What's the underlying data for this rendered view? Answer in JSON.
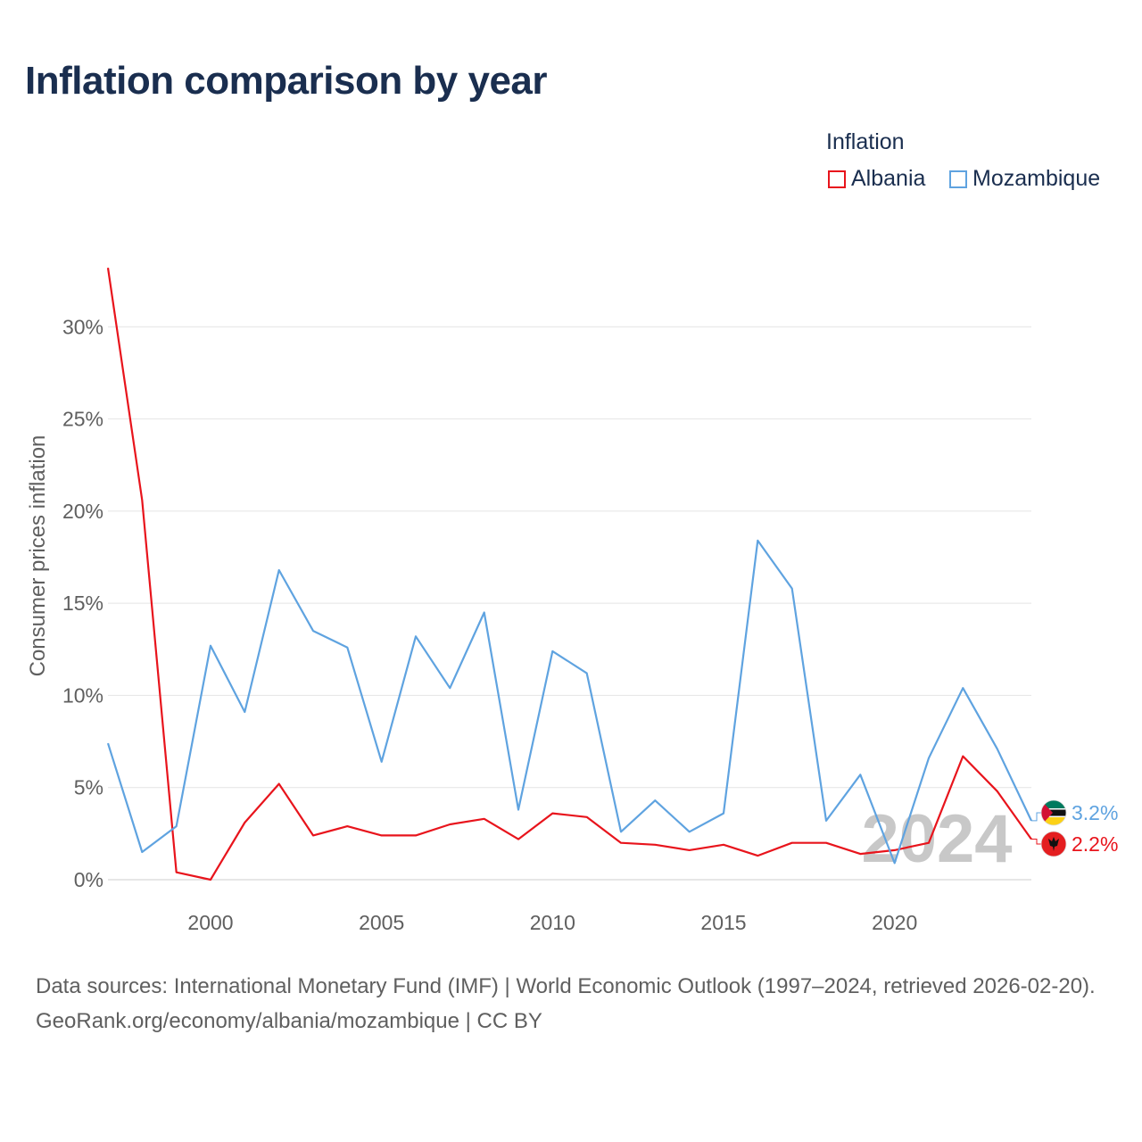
{
  "title": "Inflation comparison by year",
  "legend": {
    "title": "Inflation",
    "items": [
      {
        "label": "Albania",
        "color": "#e8141c"
      },
      {
        "label": "Mozambique",
        "color": "#5fa3e0"
      }
    ]
  },
  "chart_data": {
    "type": "line",
    "title": "Inflation comparison by year",
    "ylabel": "Consumer prices inflation",
    "xlabel": "",
    "xlim": [
      1997,
      2024
    ],
    "ylim": [
      0,
      33.5
    ],
    "x_ticks": [
      2000,
      2005,
      2010,
      2015,
      2020
    ],
    "y_ticks": [
      0,
      5,
      10,
      15,
      20,
      25,
      30
    ],
    "y_tick_labels": [
      "0%",
      "5%",
      "10%",
      "15%",
      "20%",
      "25%",
      "30%"
    ],
    "grid": true,
    "watermark": "2024",
    "x": [
      1997,
      1998,
      1999,
      2000,
      2001,
      2002,
      2003,
      2004,
      2005,
      2006,
      2007,
      2008,
      2009,
      2010,
      2011,
      2012,
      2013,
      2014,
      2015,
      2016,
      2017,
      2018,
      2019,
      2020,
      2021,
      2022,
      2023,
      2024
    ],
    "series": [
      {
        "name": "Albania",
        "color": "#e8141c",
        "end_label": "2.2%",
        "values": [
          33.2,
          20.6,
          0.4,
          0.0,
          3.1,
          5.2,
          2.4,
          2.9,
          2.4,
          2.4,
          3.0,
          3.3,
          2.2,
          3.6,
          3.4,
          2.0,
          1.9,
          1.6,
          1.9,
          1.3,
          2.0,
          2.0,
          1.4,
          1.6,
          2.0,
          6.7,
          4.8,
          2.2
        ]
      },
      {
        "name": "Mozambique",
        "color": "#5fa3e0",
        "end_label": "3.2%",
        "values": [
          7.4,
          1.5,
          2.9,
          12.7,
          9.1,
          16.8,
          13.5,
          12.6,
          6.4,
          13.2,
          10.4,
          14.5,
          3.8,
          12.4,
          11.2,
          2.6,
          4.3,
          2.6,
          3.6,
          18.4,
          15.8,
          3.2,
          5.7,
          0.9,
          6.6,
          10.4,
          7.1,
          3.2
        ]
      }
    ]
  },
  "footer": {
    "line1": "Data sources: International Monetary Fund (IMF) | World Economic Outlook (1997–2024, retrieved 2026-02-20).",
    "line2": "GeoRank.org/economy/albania/mozambique | CC BY"
  }
}
